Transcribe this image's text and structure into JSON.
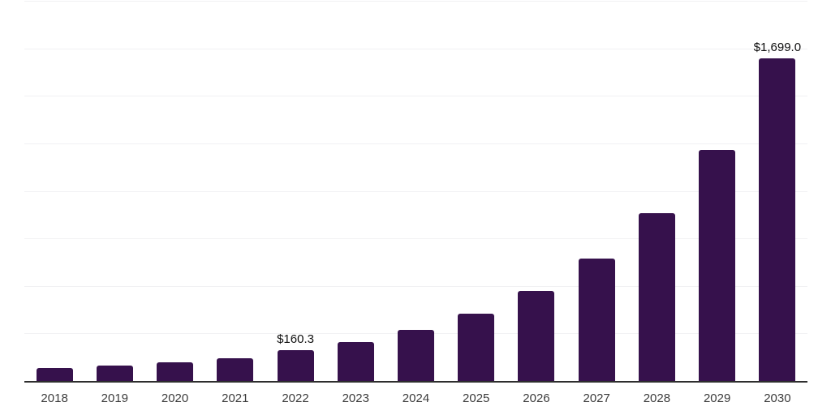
{
  "chart_data": {
    "type": "bar",
    "title": "",
    "xlabel": "",
    "ylabel": "",
    "categories": [
      "2018",
      "2019",
      "2020",
      "2021",
      "2022",
      "2023",
      "2024",
      "2025",
      "2026",
      "2027",
      "2028",
      "2029",
      "2030"
    ],
    "values": [
      67,
      79,
      100,
      121,
      160.3,
      206,
      268,
      356,
      473,
      645,
      882,
      1217,
      1699
    ],
    "value_labels": [
      "",
      "",
      "",
      "",
      "$160.3",
      "",
      "",
      "",
      "",
      "",
      "",
      "",
      "$1,699.0"
    ],
    "ylim": [
      0,
      2000
    ],
    "gridline_step": 250,
    "grid": true,
    "legend": false,
    "y_axis_labels_visible": false,
    "colors": {
      "bar": "#36114c",
      "grid_line": "#f1f1f3",
      "axis_line": "#2e2e2e",
      "tick_label": "#3c3c3c",
      "value_label": "#0f0f0f",
      "background": "#ffffff"
    }
  }
}
